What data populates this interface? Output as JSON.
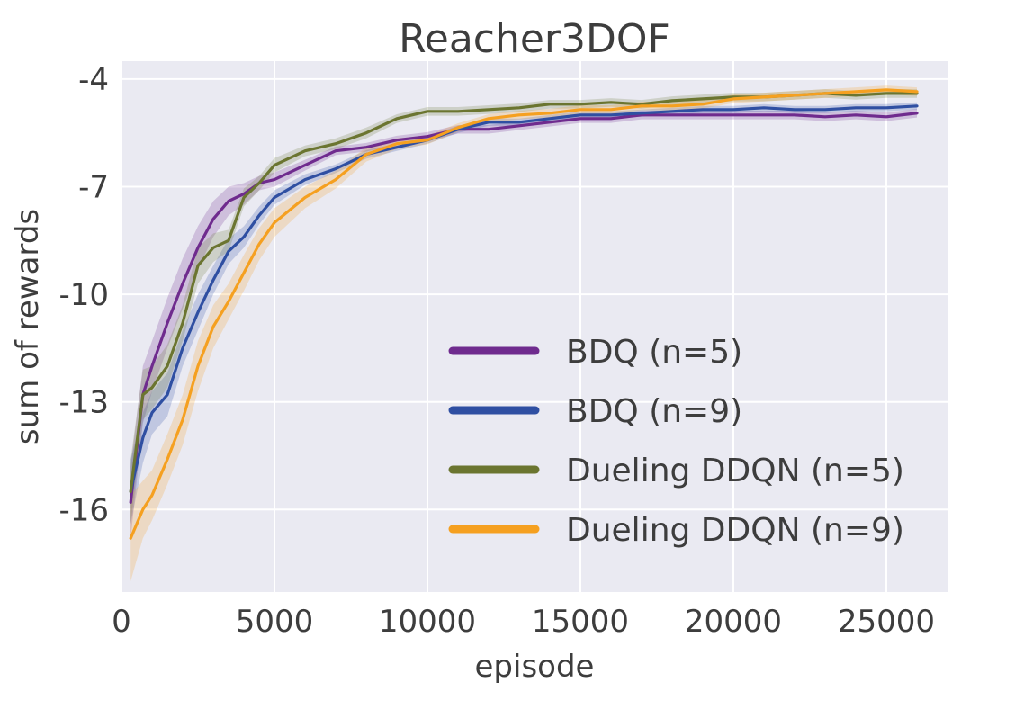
{
  "chart_data": {
    "type": "line",
    "title": "Reacher3DOF",
    "xlabel": "episode",
    "ylabel": "sum of rewards",
    "xlim": [
      0,
      27000
    ],
    "ylim": [
      -18.3,
      -3.5
    ],
    "xticks": [
      0,
      5000,
      10000,
      15000,
      20000,
      25000
    ],
    "xtick_labels": [
      "0",
      "5000",
      "10000",
      "15000",
      "20000",
      "25000"
    ],
    "yticks": [
      -4,
      -7,
      -10,
      -13,
      -16
    ],
    "ytick_labels": [
      "-4",
      "-7",
      "-10",
      "-13",
      "-16"
    ],
    "grid": true,
    "legend_position": "lower-right",
    "x": [
      300,
      700,
      1000,
      1500,
      2000,
      2500,
      3000,
      3500,
      4000,
      4500,
      5000,
      6000,
      7000,
      8000,
      9000,
      10000,
      11000,
      12000,
      13000,
      14000,
      15000,
      16000,
      17000,
      18000,
      19000,
      20000,
      21000,
      22000,
      23000,
      24000,
      25000,
      26000
    ],
    "series": [
      {
        "name": "BDQ (n=5)",
        "color": "#6f2b8e",
        "y": [
          -15.8,
          -12.8,
          -12.0,
          -10.8,
          -9.7,
          -8.7,
          -7.9,
          -7.4,
          -7.2,
          -6.9,
          -6.8,
          -6.4,
          -6.0,
          -5.9,
          -5.7,
          -5.6,
          -5.4,
          -5.4,
          -5.3,
          -5.2,
          -5.1,
          -5.1,
          -5.0,
          -5.0,
          -5.0,
          -5.0,
          -5.0,
          -5.0,
          -5.05,
          -5.0,
          -5.05,
          -4.95
        ],
        "band": [
          1.0,
          0.8,
          0.7,
          0.7,
          0.7,
          0.6,
          0.5,
          0.4,
          0.3,
          0.2,
          0.2,
          0.15,
          0.12,
          0.12,
          0.12,
          0.12,
          0.12,
          0.12,
          0.12,
          0.12,
          0.12,
          0.12,
          0.12,
          0.12,
          0.12,
          0.12,
          0.12,
          0.12,
          0.12,
          0.12,
          0.12,
          0.12
        ]
      },
      {
        "name": "BDQ (n=9)",
        "color": "#2f4fa2",
        "y": [
          -15.5,
          -14.0,
          -13.3,
          -12.8,
          -11.5,
          -10.5,
          -9.6,
          -8.8,
          -8.4,
          -7.8,
          -7.3,
          -6.8,
          -6.5,
          -6.1,
          -5.9,
          -5.7,
          -5.4,
          -5.2,
          -5.2,
          -5.1,
          -5.0,
          -5.0,
          -4.95,
          -4.9,
          -4.85,
          -4.85,
          -4.8,
          -4.85,
          -4.85,
          -4.8,
          -4.8,
          -4.75
        ],
        "band": [
          0.9,
          0.7,
          0.6,
          0.6,
          0.5,
          0.5,
          0.4,
          0.35,
          0.3,
          0.25,
          0.2,
          0.15,
          0.12,
          0.12,
          0.1,
          0.1,
          0.1,
          0.1,
          0.1,
          0.1,
          0.1,
          0.1,
          0.1,
          0.1,
          0.1,
          0.1,
          0.1,
          0.1,
          0.1,
          0.1,
          0.1,
          0.1
        ]
      },
      {
        "name": "Dueling DDQN (n=5)",
        "color": "#6b7530",
        "y": [
          -15.5,
          -12.8,
          -12.6,
          -12.0,
          -10.8,
          -9.2,
          -8.7,
          -8.5,
          -7.3,
          -6.9,
          -6.4,
          -6.0,
          -5.8,
          -5.5,
          -5.1,
          -4.9,
          -4.9,
          -4.85,
          -4.8,
          -4.7,
          -4.7,
          -4.65,
          -4.7,
          -4.6,
          -4.55,
          -4.5,
          -4.5,
          -4.45,
          -4.4,
          -4.45,
          -4.4,
          -4.4
        ],
        "band": [
          0.9,
          0.7,
          0.6,
          0.6,
          0.5,
          0.5,
          0.4,
          0.3,
          0.25,
          0.2,
          0.2,
          0.15,
          0.15,
          0.15,
          0.12,
          0.12,
          0.12,
          0.12,
          0.12,
          0.12,
          0.12,
          0.12,
          0.12,
          0.12,
          0.12,
          0.12,
          0.12,
          0.12,
          0.12,
          0.12,
          0.12,
          0.12
        ]
      },
      {
        "name": "Dueling DDQN (n=9)",
        "color": "#f5a020",
        "y": [
          -16.8,
          -16.0,
          -15.6,
          -14.6,
          -13.5,
          -12.0,
          -10.9,
          -10.2,
          -9.4,
          -8.6,
          -8.0,
          -7.3,
          -6.8,
          -6.1,
          -5.8,
          -5.7,
          -5.35,
          -5.1,
          -5.0,
          -4.95,
          -4.85,
          -4.85,
          -4.75,
          -4.75,
          -4.7,
          -4.55,
          -4.5,
          -4.45,
          -4.4,
          -4.35,
          -4.3,
          -4.35
        ],
        "band": [
          1.2,
          0.8,
          0.7,
          0.7,
          0.7,
          0.7,
          0.6,
          0.5,
          0.5,
          0.45,
          0.4,
          0.3,
          0.25,
          0.2,
          0.15,
          0.12,
          0.12,
          0.12,
          0.12,
          0.12,
          0.12,
          0.12,
          0.12,
          0.12,
          0.12,
          0.12,
          0.12,
          0.12,
          0.12,
          0.12,
          0.12,
          0.12
        ]
      }
    ]
  }
}
